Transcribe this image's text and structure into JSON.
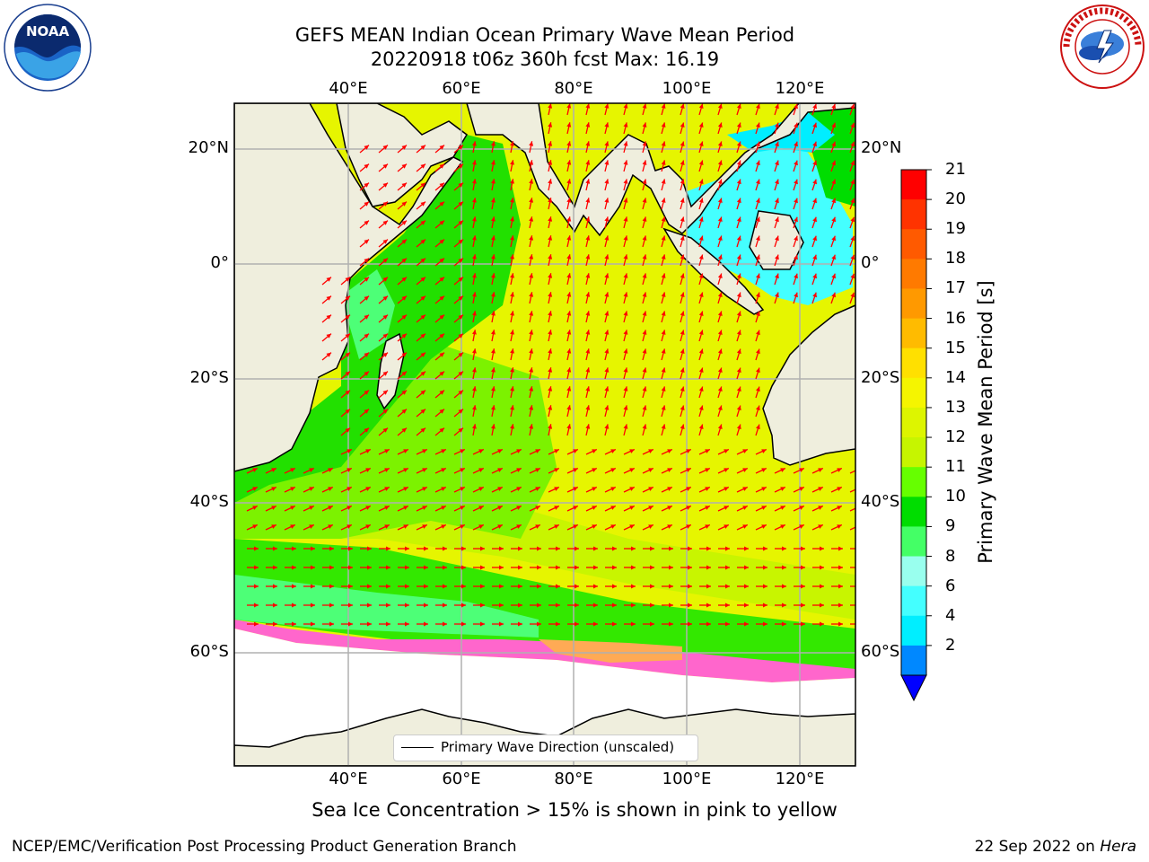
{
  "header": {
    "title_line1": "GEFS MEAN Indian Ocean Primary Wave Mean Period",
    "title_line2": "20220918 t06z 360h fcst   Max: 16.19"
  },
  "logos": {
    "left": {
      "text": "NOAA",
      "ring_text": "NATIONAL OCEANIC AND ATMOSPHERIC ADMINISTRATION · U.S. DEPARTMENT OF COMMERCE"
    },
    "right": {
      "ring_text": "NATIONAL WEATHER SERVICE"
    }
  },
  "map": {
    "lat_labels_left": [
      "20°N",
      "0°",
      "20°S",
      "40°S",
      "60°S"
    ],
    "lat_labels_right": [
      "20°N",
      "0°",
      "20°S",
      "40°S",
      "60°S"
    ],
    "lon_labels_top": [
      "40°E",
      "60°E",
      "80°E",
      "100°E",
      "120°E"
    ],
    "lon_labels_bottom": [
      "40°E",
      "60°E",
      "80°E",
      "100°E",
      "120°E"
    ],
    "legend_label": "Primary Wave Direction (unscaled)",
    "colors": {
      "land": "#efeedd",
      "sea_ice": "#ffffff",
      "arrow": "#ff0000",
      "grid": "#b0b0b0"
    }
  },
  "colorbar": {
    "title": "Primary Wave Mean Period [s]",
    "labels": [
      "21",
      "20",
      "19",
      "18",
      "17",
      "16",
      "15",
      "14",
      "13",
      "12",
      "11",
      "10",
      "9",
      "8",
      "6",
      "4",
      "2"
    ],
    "colors": [
      "#ff0000",
      "#ff3300",
      "#ff5a00",
      "#ff7a00",
      "#ff9900",
      "#ffbb00",
      "#ffe000",
      "#f5f500",
      "#ddf500",
      "#c6f500",
      "#66ff00",
      "#00dd00",
      "#44ff66",
      "#99ffee",
      "#44ffff",
      "#00eeff",
      "#0088ff",
      "#0000ff"
    ]
  },
  "notes": {
    "sea_ice": "Sea Ice Concentration > 15% is shown in pink to yellow",
    "footer_left": "NCEP/EMC/Verification Post Processing Product Generation Branch",
    "footer_right_date": "22 Sep 2022 on ",
    "footer_right_machine": "Hera"
  }
}
